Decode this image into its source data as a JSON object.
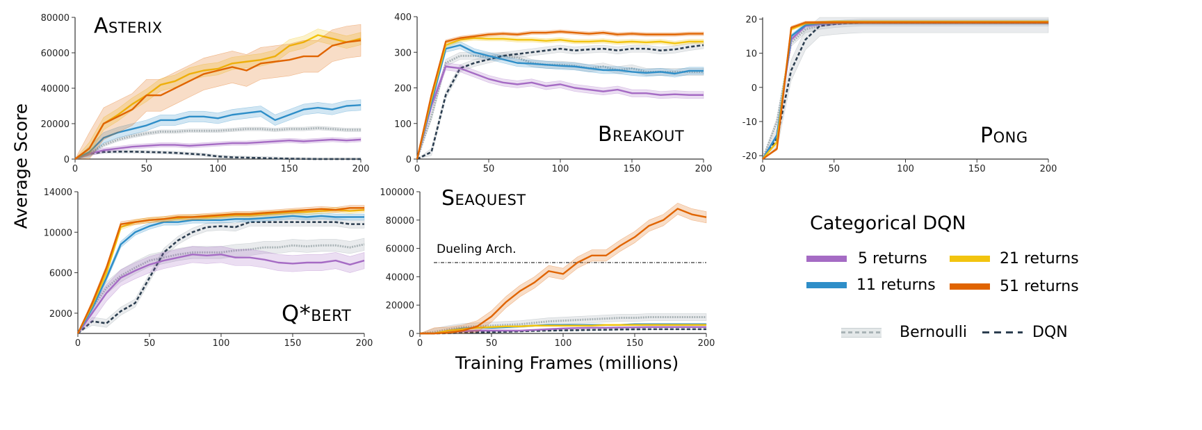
{
  "ylabel": "Average Score",
  "xlabel": "Training Frames (millions)",
  "legend": {
    "title": "Categorical DQN",
    "items": [
      {
        "label": "5 returns",
        "color": "#a56bc4"
      },
      {
        "label": "11 returns",
        "color": "#2e8ec8"
      },
      {
        "label": "21 returns",
        "color": "#f2c40f"
      },
      {
        "label": "51 returns",
        "color": "#e06400"
      },
      {
        "label": "Bernoulli",
        "color": "#a9b3b6"
      },
      {
        "label": "DQN",
        "color": "#2c3e50"
      }
    ]
  },
  "chart_data": [
    {
      "type": "line",
      "title": "Asterix",
      "xlim": [
        0,
        200
      ],
      "ylim": [
        0,
        80000
      ],
      "xticks": [
        0,
        50,
        100,
        150,
        200
      ],
      "yticks": [
        0,
        20000,
        40000,
        60000,
        80000
      ],
      "x": [
        0,
        10,
        20,
        30,
        40,
        50,
        60,
        70,
        80,
        90,
        100,
        110,
        120,
        130,
        140,
        150,
        160,
        170,
        180,
        190,
        200
      ],
      "series": [
        {
          "name": "5 returns",
          "spread": 1200,
          "values": [
            0,
            3000,
            5000,
            6000,
            7000,
            7500,
            8000,
            8000,
            7500,
            8000,
            8500,
            9000,
            9000,
            9500,
            10000,
            10500,
            10000,
            10500,
            11000,
            10500,
            11000
          ]
        },
        {
          "name": "11 returns",
          "spread": 3000,
          "values": [
            0,
            4000,
            12000,
            15000,
            17000,
            19000,
            22000,
            22000,
            24000,
            24000,
            23000,
            25000,
            26000,
            27000,
            22000,
            25000,
            28000,
            29000,
            28000,
            30000,
            30500
          ]
        },
        {
          "name": "21 returns",
          "spread": 3500,
          "values": [
            0,
            6000,
            20000,
            25000,
            31000,
            36000,
            42000,
            44000,
            48000,
            50000,
            51000,
            54000,
            55000,
            56000,
            58000,
            64000,
            66000,
            70000,
            68000,
            66000,
            68000
          ]
        },
        {
          "name": "51 returns",
          "spread": 9000,
          "values": [
            0,
            6000,
            20000,
            24000,
            28000,
            36000,
            36000,
            40000,
            44000,
            48000,
            50000,
            52000,
            50000,
            54000,
            55000,
            56000,
            58000,
            58000,
            64000,
            66000,
            67000
          ]
        },
        {
          "name": "Bernoulli",
          "spread": 1000,
          "values": [
            0,
            3000,
            8000,
            11000,
            13000,
            14500,
            15500,
            15500,
            16000,
            16000,
            16000,
            16500,
            17000,
            17000,
            16500,
            17000,
            17000,
            17500,
            17000,
            16500,
            16500
          ]
        },
        {
          "name": "DQN",
          "spread": 800,
          "values": [
            0,
            3000,
            4000,
            4200,
            4200,
            4000,
            3800,
            3500,
            3000,
            2500,
            1500,
            1000,
            800,
            600,
            400,
            200,
            100,
            0,
            0,
            0,
            0
          ]
        }
      ]
    },
    {
      "type": "line",
      "title": "Breakout",
      "xlim": [
        0,
        200
      ],
      "ylim": [
        0,
        400
      ],
      "xticks": [
        0,
        50,
        100,
        150,
        200
      ],
      "yticks": [
        0,
        100,
        200,
        300,
        400
      ],
      "x": [
        0,
        10,
        20,
        30,
        40,
        50,
        60,
        70,
        80,
        90,
        100,
        110,
        120,
        130,
        140,
        150,
        160,
        170,
        180,
        190,
        200
      ],
      "series": [
        {
          "name": "5 returns",
          "spread": 10,
          "values": [
            0,
            150,
            260,
            255,
            240,
            225,
            215,
            210,
            215,
            205,
            210,
            200,
            195,
            190,
            195,
            185,
            185,
            180,
            182,
            180,
            180
          ]
        },
        {
          "name": "11 returns",
          "spread": 10,
          "values": [
            0,
            160,
            310,
            320,
            300,
            290,
            280,
            270,
            268,
            265,
            262,
            260,
            255,
            250,
            250,
            245,
            242,
            245,
            240,
            248,
            248
          ]
        },
        {
          "name": "21 returns",
          "spread": 6,
          "values": [
            0,
            170,
            320,
            335,
            340,
            338,
            338,
            335,
            335,
            332,
            335,
            330,
            330,
            332,
            328,
            330,
            328,
            330,
            325,
            330,
            330
          ]
        },
        {
          "name": "51 returns",
          "spread": 5,
          "values": [
            0,
            180,
            330,
            340,
            345,
            350,
            352,
            350,
            355,
            355,
            358,
            355,
            352,
            355,
            350,
            352,
            350,
            350,
            350,
            352,
            352
          ]
        },
        {
          "name": "Bernoulli",
          "spread": 10,
          "values": [
            0,
            120,
            270,
            290,
            290,
            288,
            290,
            285,
            270,
            265,
            265,
            262,
            255,
            260,
            250,
            255,
            245,
            245,
            245,
            245,
            245
          ]
        },
        {
          "name": "DQN",
          "spread": 10,
          "values": [
            0,
            20,
            180,
            255,
            270,
            280,
            290,
            295,
            300,
            305,
            310,
            305,
            308,
            310,
            305,
            310,
            310,
            305,
            308,
            315,
            320
          ]
        }
      ]
    },
    {
      "type": "line",
      "title": "Pong",
      "xlim": [
        0,
        200
      ],
      "ylim": [
        -21,
        20.5
      ],
      "xticks": [
        0,
        50,
        100,
        150,
        200
      ],
      "yticks": [
        -20,
        -10,
        0,
        10,
        20
      ],
      "x": [
        0,
        10,
        20,
        30,
        40,
        50,
        60,
        70,
        80,
        90,
        100,
        110,
        120,
        130,
        140,
        150,
        160,
        170,
        180,
        190,
        200
      ],
      "series": [
        {
          "name": "5 returns",
          "spread": 0.5,
          "values": [
            -21,
            -14,
            14,
            18,
            18.5,
            18.8,
            19,
            19,
            19,
            19,
            19,
            19,
            19,
            19,
            19,
            19,
            19,
            19,
            19,
            19,
            19
          ]
        },
        {
          "name": "11 returns",
          "spread": 0.5,
          "values": [
            -21,
            -14,
            15,
            18.3,
            18.8,
            19,
            19,
            19,
            19,
            19,
            19,
            19,
            19,
            19,
            19,
            19,
            19,
            19,
            19,
            19,
            19
          ]
        },
        {
          "name": "21 returns",
          "spread": 0.4,
          "values": [
            -21,
            -16,
            17,
            18.8,
            19,
            19.2,
            19.2,
            19.2,
            19.2,
            19.2,
            19.2,
            19.2,
            19.2,
            19.2,
            19.2,
            19.2,
            19.2,
            19.2,
            19.2,
            19.2,
            19.2
          ]
        },
        {
          "name": "51 returns",
          "spread": 0.4,
          "values": [
            -21,
            -18,
            17.5,
            19,
            19,
            19,
            19,
            19,
            19,
            19,
            19,
            19,
            19,
            19,
            19,
            19,
            19,
            19,
            19,
            19,
            19
          ]
        },
        {
          "name": "Bernoulli",
          "spread": 1,
          "values": [
            -21,
            -10,
            13,
            17,
            18,
            18.5,
            18.8,
            19,
            19,
            19,
            19,
            19,
            19,
            19,
            19,
            19,
            19,
            19,
            19,
            19,
            19
          ]
        },
        {
          "name": "DQN",
          "spread": 3,
          "values": [
            -21,
            -15,
            5,
            14,
            18,
            18.5,
            18.8,
            19,
            19,
            19,
            19,
            19,
            19,
            19,
            19,
            19,
            19,
            19,
            19,
            19,
            19
          ]
        }
      ]
    },
    {
      "type": "line",
      "title": "Q*bert",
      "xlim": [
        0,
        200
      ],
      "ylim": [
        0,
        14000
      ],
      "xticks": [
        0,
        50,
        100,
        150,
        200
      ],
      "yticks": [
        2000,
        6000,
        10000,
        14000
      ],
      "x": [
        0,
        10,
        20,
        30,
        40,
        50,
        60,
        70,
        80,
        90,
        100,
        110,
        120,
        130,
        140,
        150,
        160,
        170,
        180,
        190,
        200
      ],
      "series": [
        {
          "name": "5 returns",
          "spread": 800,
          "values": [
            0,
            2000,
            4000,
            5500,
            6200,
            6800,
            7200,
            7500,
            7800,
            7700,
            7800,
            7500,
            7500,
            7300,
            7000,
            6900,
            7000,
            7000,
            7200,
            6800,
            7200
          ]
        },
        {
          "name": "11 returns",
          "spread": 300,
          "values": [
            0,
            2500,
            5500,
            8800,
            10000,
            10600,
            11000,
            11000,
            11200,
            11200,
            11200,
            11300,
            11300,
            11400,
            11500,
            11600,
            11500,
            11600,
            11500,
            11500,
            11500
          ]
        },
        {
          "name": "21 returns",
          "spread": 250,
          "values": [
            0,
            2800,
            6000,
            10500,
            11000,
            11200,
            11300,
            11400,
            11500,
            11500,
            11600,
            11700,
            11700,
            11800,
            11900,
            12000,
            12000,
            12100,
            12200,
            12100,
            12200
          ]
        },
        {
          "name": "51 returns",
          "spread": 250,
          "values": [
            0,
            3000,
            6500,
            10800,
            11000,
            11200,
            11300,
            11500,
            11500,
            11600,
            11700,
            11800,
            11800,
            11900,
            12000,
            12100,
            12200,
            12300,
            12200,
            12400,
            12400
          ]
        },
        {
          "name": "Bernoulli",
          "spread": 600,
          "values": [
            0,
            2500,
            4500,
            5700,
            6500,
            7200,
            7500,
            7800,
            8000,
            8000,
            8000,
            8200,
            8300,
            8500,
            8500,
            8700,
            8600,
            8700,
            8700,
            8500,
            8800
          ]
        },
        {
          "name": "DQN",
          "spread": 400,
          "values": [
            0,
            1200,
            1000,
            2200,
            3000,
            5500,
            8000,
            9200,
            10000,
            10500,
            10600,
            10500,
            11000,
            11000,
            11000,
            11000,
            11000,
            11000,
            11000,
            10800,
            10800
          ]
        }
      ]
    },
    {
      "type": "line",
      "title": "Seaquest",
      "xlim": [
        0,
        200
      ],
      "ylim": [
        0,
        100000
      ],
      "xticks": [
        0,
        50,
        100,
        150,
        200
      ],
      "yticks": [
        0,
        20000,
        40000,
        60000,
        80000,
        100000
      ],
      "x": [
        0,
        10,
        20,
        30,
        40,
        50,
        60,
        70,
        80,
        90,
        100,
        110,
        120,
        130,
        140,
        150,
        160,
        170,
        180,
        190,
        200
      ],
      "annotation": {
        "label": "Dueling Arch.",
        "y": 50000
      },
      "series": [
        {
          "name": "5 returns",
          "spread": 500,
          "values": [
            0,
            0,
            1000,
            1500,
            2000,
            2000,
            2000,
            2000,
            2500,
            3000,
            3500,
            3800,
            4000,
            4000,
            4200,
            4300,
            4500,
            4500,
            4500,
            4500,
            4500
          ]
        },
        {
          "name": "11 returns",
          "spread": 500,
          "values": [
            0,
            0,
            2000,
            3500,
            4000,
            4000,
            4500,
            5000,
            5500,
            6000,
            6000,
            6000,
            6000,
            6000,
            6000,
            6500,
            6500,
            6500,
            6500,
            6500,
            6500
          ]
        },
        {
          "name": "21 returns",
          "spread": 500,
          "values": [
            0,
            0,
            2000,
            3000,
            4000,
            4500,
            5000,
            5000,
            5500,
            5500,
            5500,
            5500,
            5500,
            6000,
            6000,
            6000,
            6000,
            6000,
            6000,
            6000,
            6000
          ]
        },
        {
          "name": "51 returns",
          "spread": 4000,
          "values": [
            0,
            0,
            500,
            2000,
            5000,
            12000,
            22000,
            30000,
            36000,
            44000,
            42000,
            50000,
            55000,
            55000,
            62000,
            68000,
            76000,
            80000,
            88000,
            84000,
            82000
          ]
        },
        {
          "name": "Bernoulli",
          "spread": 2500,
          "values": [
            0,
            1000,
            3000,
            4500,
            5000,
            5500,
            6000,
            6500,
            7500,
            8500,
            9000,
            9500,
            10000,
            10500,
            11000,
            11000,
            11500,
            11500,
            11500,
            11500,
            11500
          ]
        },
        {
          "name": "DQN",
          "spread": 300,
          "values": [
            0,
            0,
            200,
            500,
            800,
            1000,
            1200,
            1500,
            1800,
            2000,
            2200,
            2300,
            2500,
            2600,
            2800,
            2900,
            3000,
            3000,
            3000,
            3000,
            3000
          ]
        }
      ]
    }
  ]
}
